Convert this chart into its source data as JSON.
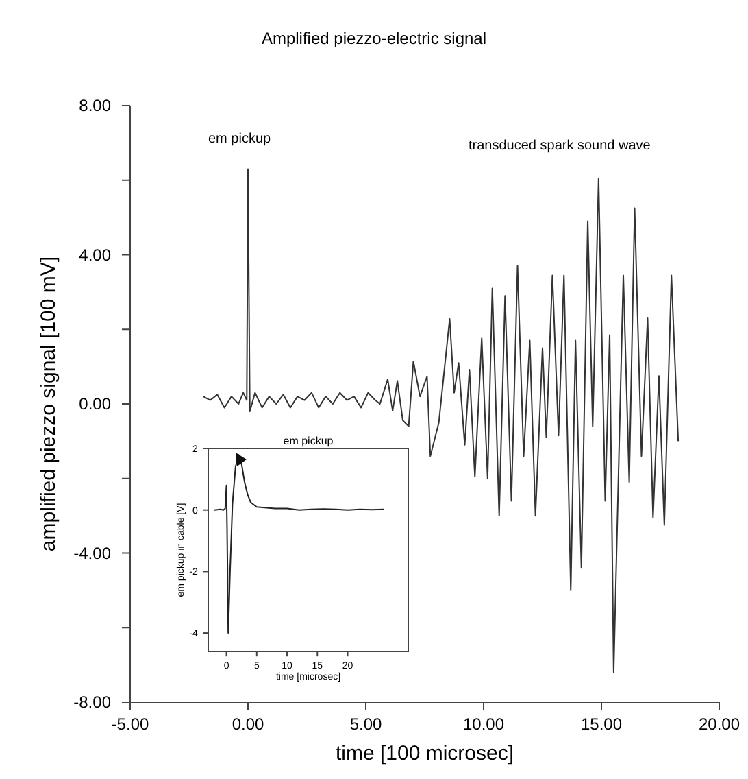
{
  "chart_data": [
    {
      "type": "line",
      "title": "Amplified piezzo-electric signal",
      "xlabel": "time [100 microsec]",
      "ylabel": "amplified piezzo signal [100 mV]",
      "xlim": [
        -5,
        20
      ],
      "xticks": [
        {
          "value": -5,
          "label": "-5.00"
        },
        {
          "value": 0,
          "label": "0.00"
        },
        {
          "value": 5,
          "label": "5.00"
        },
        {
          "value": 10,
          "label": "10.00"
        },
        {
          "value": 15,
          "label": "15.00"
        },
        {
          "value": 20,
          "label": "20.00"
        }
      ],
      "ylim": [
        -8,
        8
      ],
      "yticks": [
        {
          "value": -8,
          "label": "-8.00"
        },
        {
          "value": -6,
          "label": null
        },
        {
          "value": -4,
          "label": "-4.00"
        },
        {
          "value": -2,
          "label": null
        },
        {
          "value": 0,
          "label": "0.00"
        },
        {
          "value": 2,
          "label": null
        },
        {
          "value": 4,
          "label": "4.00"
        },
        {
          "value": 6,
          "label": null
        },
        {
          "value": 8,
          "label": "8.00"
        }
      ],
      "annotations": [
        "em pickup",
        "transduced spark sound wave"
      ],
      "series": [
        {
          "color": "#333333",
          "x": [
            -1.9,
            -1.6,
            -1.3,
            -1.0,
            -0.7,
            -0.4,
            -0.2,
            -0.05,
            0.0,
            0.08,
            0.3,
            0.6,
            0.9,
            1.2,
            1.5,
            1.8,
            2.1,
            2.4,
            2.7,
            3.0,
            3.3,
            3.6,
            3.9,
            4.2,
            4.5,
            4.8,
            5.1,
            5.4,
            5.6,
            5.93,
            6.14,
            6.34,
            6.57,
            6.82,
            7.02,
            7.3,
            7.6,
            7.74,
            8.1,
            8.56,
            8.75,
            8.94,
            9.2,
            9.4,
            9.63,
            9.92,
            10.17,
            10.37,
            10.66,
            10.91,
            11.18,
            11.44,
            11.7,
            11.96,
            12.2,
            12.5,
            12.66,
            12.92,
            13.18,
            13.41,
            13.7,
            13.9,
            14.15,
            14.42,
            14.63,
            14.88,
            15.16,
            15.35,
            15.52,
            15.93,
            16.18,
            16.41,
            16.7,
            16.96,
            17.19,
            17.44,
            17.67,
            17.97,
            18.26
          ],
          "values": [
            0.2,
            0.1,
            0.25,
            -0.1,
            0.2,
            0.0,
            0.3,
            0.1,
            6.3,
            -0.2,
            0.3,
            -0.1,
            0.2,
            0.0,
            0.25,
            -0.1,
            0.2,
            0.1,
            0.3,
            -0.1,
            0.2,
            0.0,
            0.3,
            0.1,
            0.2,
            -0.1,
            0.3,
            0.1,
            0.0,
            0.66,
            -0.18,
            0.62,
            -0.44,
            -0.6,
            1.14,
            0.2,
            0.74,
            -1.4,
            -0.5,
            2.28,
            0.3,
            1.1,
            -1.1,
            0.92,
            -1.95,
            1.76,
            -2.0,
            3.1,
            -3.0,
            2.9,
            -2.6,
            3.7,
            -1.4,
            1.7,
            -3.0,
            1.5,
            -0.9,
            3.45,
            -0.85,
            3.45,
            -5.0,
            1.7,
            -4.4,
            4.9,
            -0.6,
            6.05,
            -2.6,
            1.85,
            -7.2,
            3.45,
            -2.1,
            5.25,
            -1.4,
            2.3,
            -3.05,
            0.75,
            -3.25,
            3.45,
            -1.0
          ]
        }
      ]
    },
    {
      "type": "line",
      "title": "em pickup",
      "xlabel": "time [microsec]",
      "ylabel": "em pickup in cable [V]",
      "xlim": [
        -3,
        30
      ],
      "xticks": [
        0,
        5,
        10,
        15,
        20
      ],
      "ylim": [
        -4.6,
        2
      ],
      "yticks": [
        -4,
        -2,
        0,
        2
      ],
      "series": [
        {
          "color": "#222222",
          "x": [
            -2,
            -1,
            -0.5,
            -0.2,
            0,
            0.1,
            0.3,
            0.6,
            1.0,
            1.5,
            2.0,
            2.5,
            3,
            3.5,
            4,
            5,
            6,
            8,
            10,
            12,
            14,
            16,
            18,
            20,
            22,
            24,
            26
          ],
          "values": [
            0,
            0.02,
            0,
            0.05,
            0.8,
            -0.5,
            -4.0,
            -2.0,
            0.2,
            1.4,
            1.8,
            1.5,
            0.9,
            0.5,
            0.25,
            0.1,
            0.08,
            0.05,
            0.05,
            0,
            0.02,
            0.03,
            0.02,
            0,
            0.02,
            0.01,
            0.02
          ]
        }
      ]
    }
  ]
}
